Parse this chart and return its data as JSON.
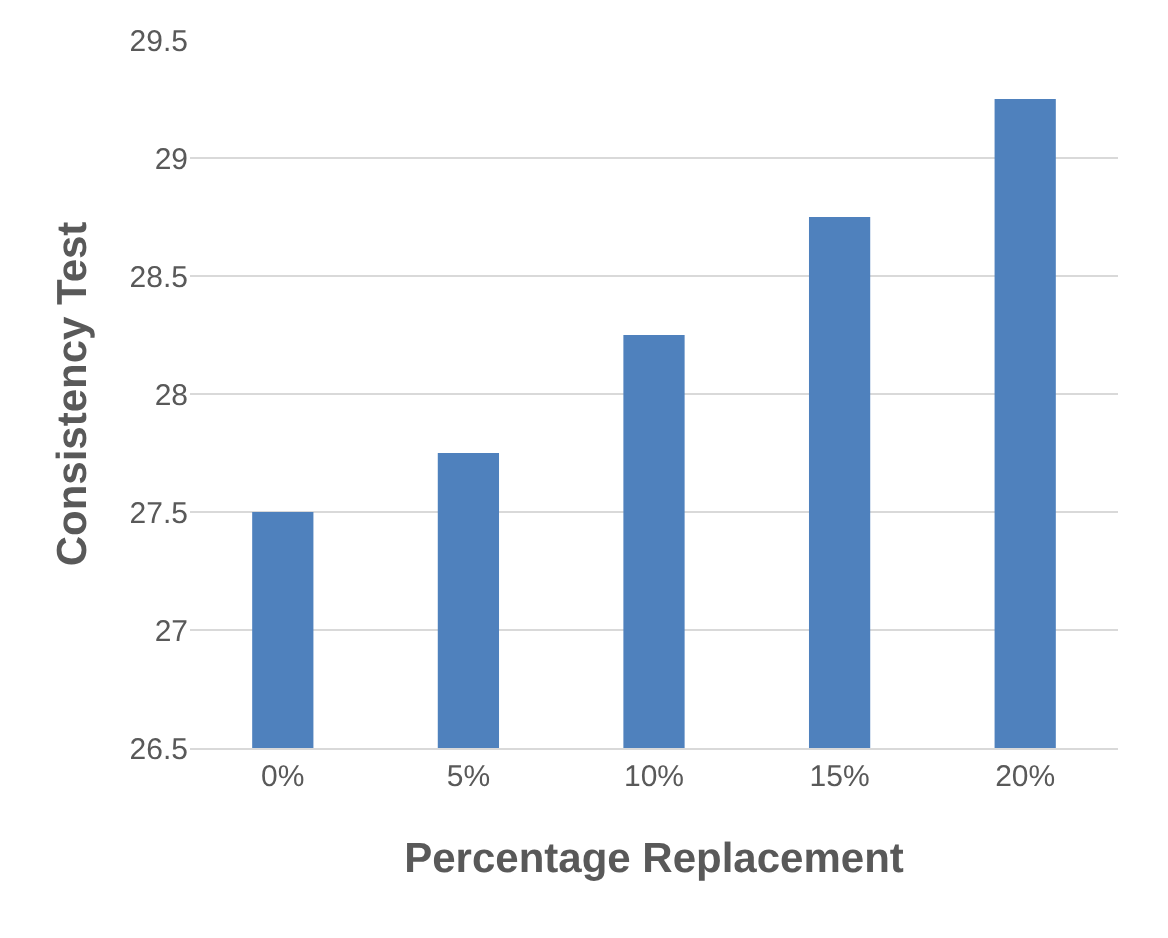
{
  "chart_data": {
    "type": "bar",
    "xlabel": "Percentage Replacement",
    "ylabel": "Consistency Test",
    "categories": [
      "0%",
      "5%",
      "10%",
      "15%",
      "20%"
    ],
    "values": [
      27.5,
      27.75,
      28.25,
      28.75,
      29.25
    ],
    "color": "#4f81bd",
    "ylim": [
      26.5,
      29.5
    ],
    "yticks": [
      26.5,
      27,
      27.5,
      28,
      28.5,
      29,
      29.5
    ],
    "grid": "y"
  }
}
